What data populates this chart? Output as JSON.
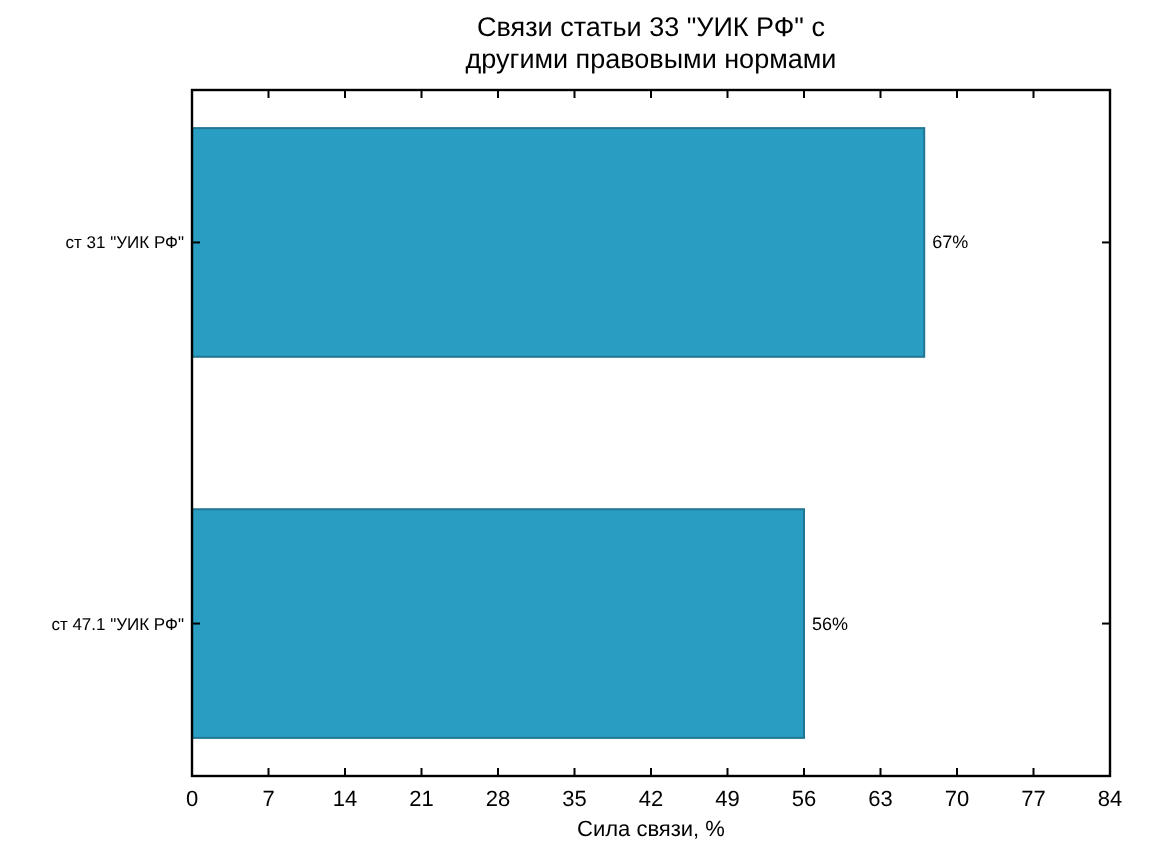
{
  "chart_data": {
    "type": "bar",
    "orientation": "horizontal",
    "title": "Связи статьи 33 \"УИК РФ\" с\nдругими правовыми нормами",
    "xlabel": "Сила связи, %",
    "categories": [
      "ст 31 \"УИК РФ\"",
      "ст 47.1 \"УИК РФ\""
    ],
    "values": [
      67,
      56
    ],
    "value_labels": [
      "67%",
      "56%"
    ],
    "color": "#2a9dc3",
    "xlim": [
      0,
      84
    ],
    "xticks": [
      0,
      7,
      14,
      21,
      28,
      35,
      42,
      49,
      56,
      63,
      70,
      77,
      84
    ]
  }
}
